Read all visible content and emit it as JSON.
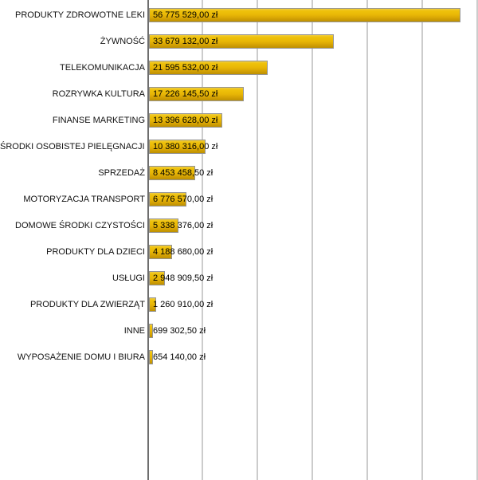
{
  "chart_data": {
    "type": "bar",
    "orientation": "horizontal",
    "title": "",
    "xlabel": "",
    "ylabel": "",
    "xlim": [
      0,
      60000000
    ],
    "gridline_interval": 10000000,
    "grid": true,
    "legend": "none",
    "currency_suffix": "zł",
    "categories": [
      "PRODUKTY ZDROWOTNE LEKI",
      "ŻYWNOŚĆ",
      "TELEKOMUNIKACJA",
      "ROZRYWKA KULTURA",
      "FINANSE MARKETING",
      "ŚRODKI OSOBISTEJ PIELĘGNACJI CIAŁA",
      "SPRZEDAŻ",
      "MOTORYZACJA TRANSPORT",
      "DOMOWE ŚRODKI CZYSTOŚCI",
      "PRODUKTY DLA DZIECI",
      "USŁUGI",
      "PRODUKTY DLA ZWIERZĄT",
      "INNE",
      "WYPOSAŻENIE DOMU I BIURA"
    ],
    "values": [
      56775529.0,
      33679132.0,
      21595532.0,
      17226145.5,
      13396628.0,
      10380316.0,
      8453458.5,
      6776570.0,
      5338376.0,
      4188680.0,
      2948909.5,
      1260910.0,
      699302.5,
      654140.0
    ],
    "value_labels": [
      "56 775 529,00 zł",
      "33 679 132,00 zł",
      "21 595 532,00 zł",
      "17 226 145,50 zł",
      "13 396 628,00 zł",
      "10 380 316,00 zł",
      "8 453 458,50 zł",
      "6 776 570,00 zł",
      "5 338 376,00 zł",
      "4 188 680,00 zł",
      "2 948 909,50 zł",
      "1 260 910,00 zł",
      "699 302,50 zł",
      "654 140,00 zł"
    ],
    "colors": {
      "background": "#ffffff",
      "bar_top": "#eecb43",
      "bar_mid": "#e8b606",
      "bar_bottom": "#bd9002",
      "bar_border": "#959595",
      "axis_line": "#6e6e6e",
      "gridline": "#cccccc",
      "label_text": "#111111",
      "value_text": "#000000"
    }
  }
}
